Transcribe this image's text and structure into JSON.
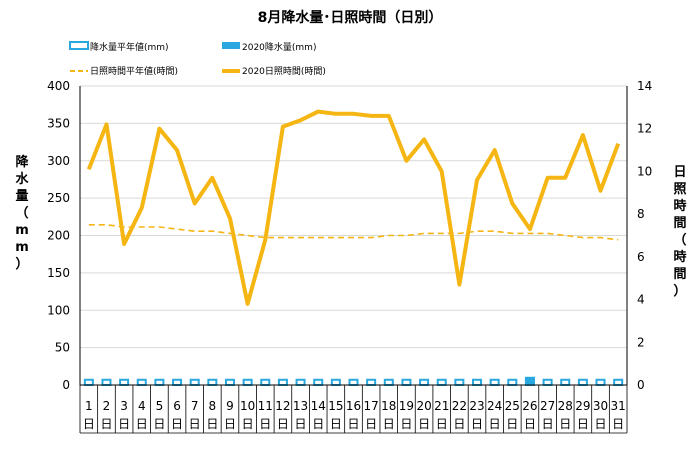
{
  "chart_data": {
    "type": "bar+line",
    "title": "8月降水量･日照時間（日別）",
    "categories": [
      "1",
      "2",
      "3",
      "4",
      "5",
      "6",
      "7",
      "8",
      "9",
      "10",
      "11",
      "12",
      "13",
      "14",
      "15",
      "16",
      "17",
      "18",
      "19",
      "20",
      "21",
      "22",
      "23",
      "24",
      "25",
      "26",
      "27",
      "28",
      "29",
      "30",
      "31"
    ],
    "category_suffix": "日",
    "left_axis": {
      "label": "降水量（mm）",
      "ylim": [
        0,
        400
      ],
      "ticks": [
        "0",
        "50",
        "100",
        "150",
        "200",
        "250",
        "300",
        "350",
        "400"
      ]
    },
    "right_axis": {
      "label": "日照時間（時間）",
      "ylim": [
        0,
        14
      ],
      "ticks": [
        "0",
        "2",
        "4",
        "6",
        "8",
        "10",
        "12",
        "14"
      ]
    },
    "legend": [
      {
        "key": "rain_normal",
        "label": "降水量平年値(mm)"
      },
      {
        "key": "rain_2020",
        "label": "2020降水量(mm)"
      },
      {
        "key": "sun_normal",
        "label": "日照時間平年値(時間)"
      },
      {
        "key": "sun_2020",
        "label": "2020日照時間(時間)"
      }
    ],
    "series": [
      {
        "key": "rain_normal",
        "type": "bar",
        "axis": "left",
        "color": "#29A8E0",
        "values": [
          7,
          7,
          7,
          7,
          7,
          7,
          7,
          7,
          7,
          7,
          7,
          7,
          7,
          7,
          7,
          7,
          7,
          7,
          7,
          7,
          7,
          7,
          7,
          7,
          7,
          7,
          7,
          7,
          7,
          7,
          7
        ]
      },
      {
        "key": "rain_2020",
        "type": "bar",
        "axis": "left",
        "color": "#29A8E0",
        "values": [
          0,
          0,
          0,
          0,
          0,
          0,
          0,
          0,
          0,
          0,
          0,
          0,
          0,
          0,
          0,
          0,
          0,
          0,
          0,
          0,
          0,
          0,
          0,
          0,
          0,
          11,
          0,
          0,
          0,
          0,
          0
        ]
      },
      {
        "key": "sun_normal",
        "type": "line",
        "axis": "right",
        "color": "#F5B512",
        "dashed": true,
        "values": [
          7.5,
          7.5,
          7.4,
          7.4,
          7.4,
          7.3,
          7.2,
          7.2,
          7.1,
          7.0,
          6.9,
          6.9,
          6.9,
          6.9,
          6.9,
          6.9,
          6.9,
          7.0,
          7.0,
          7.1,
          7.1,
          7.1,
          7.2,
          7.2,
          7.1,
          7.1,
          7.1,
          7.0,
          6.9,
          6.9,
          6.8
        ]
      },
      {
        "key": "sun_2020",
        "type": "line",
        "axis": "right",
        "color": "#F5B512",
        "dashed": false,
        "values": [
          10.1,
          12.2,
          6.6,
          8.3,
          12.0,
          11.0,
          8.5,
          9.7,
          7.8,
          3.8,
          6.8,
          12.1,
          12.4,
          12.8,
          12.7,
          12.7,
          12.6,
          12.6,
          10.5,
          11.5,
          10.0,
          4.7,
          9.6,
          11.0,
          8.5,
          7.3,
          9.7,
          9.7,
          11.7,
          9.1,
          11.3
        ]
      }
    ],
    "grid": "horizontal"
  }
}
